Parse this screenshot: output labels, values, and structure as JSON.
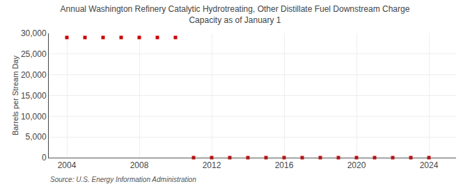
{
  "chart_data": {
    "type": "scatter",
    "title": "Annual Washington Refinery Catalytic Hydrotreating, Other Distillate Fuel Downstream Charge\nCapacity as of January 1",
    "ylabel": "Barrels per Stream Day",
    "annotations": [
      {
        "text": "Source: U.S. Energy Information Administration"
      }
    ],
    "x": [
      2004,
      2005,
      2006,
      2007,
      2008,
      2009,
      2010,
      2011,
      2012,
      2013,
      2014,
      2015,
      2016,
      2017,
      2018,
      2019,
      2020,
      2021,
      2022,
      2023,
      2024
    ],
    "values": [
      29000,
      29000,
      29000,
      29000,
      29000,
      29000,
      29000,
      0,
      0,
      0,
      0,
      0,
      0,
      0,
      0,
      0,
      0,
      0,
      0,
      0,
      0
    ],
    "color": "#cc0000",
    "marker": "square",
    "xlim": [
      2003.0,
      2025.5
    ],
    "xticks": [
      2004,
      2008,
      2012,
      2016,
      2020,
      2024
    ],
    "ylim": [
      0,
      30000
    ],
    "yticks": [
      0,
      {
        "value": 5000,
        "label": "5,000"
      },
      {
        "value": 10000,
        "label": "10,000"
      },
      {
        "value": 15000,
        "label": "15,000"
      },
      {
        "value": 20000,
        "label": "20,000"
      },
      {
        "value": 25000,
        "label": "25,000"
      },
      {
        "value": 30000,
        "label": "30,000"
      }
    ],
    "grid": true
  }
}
